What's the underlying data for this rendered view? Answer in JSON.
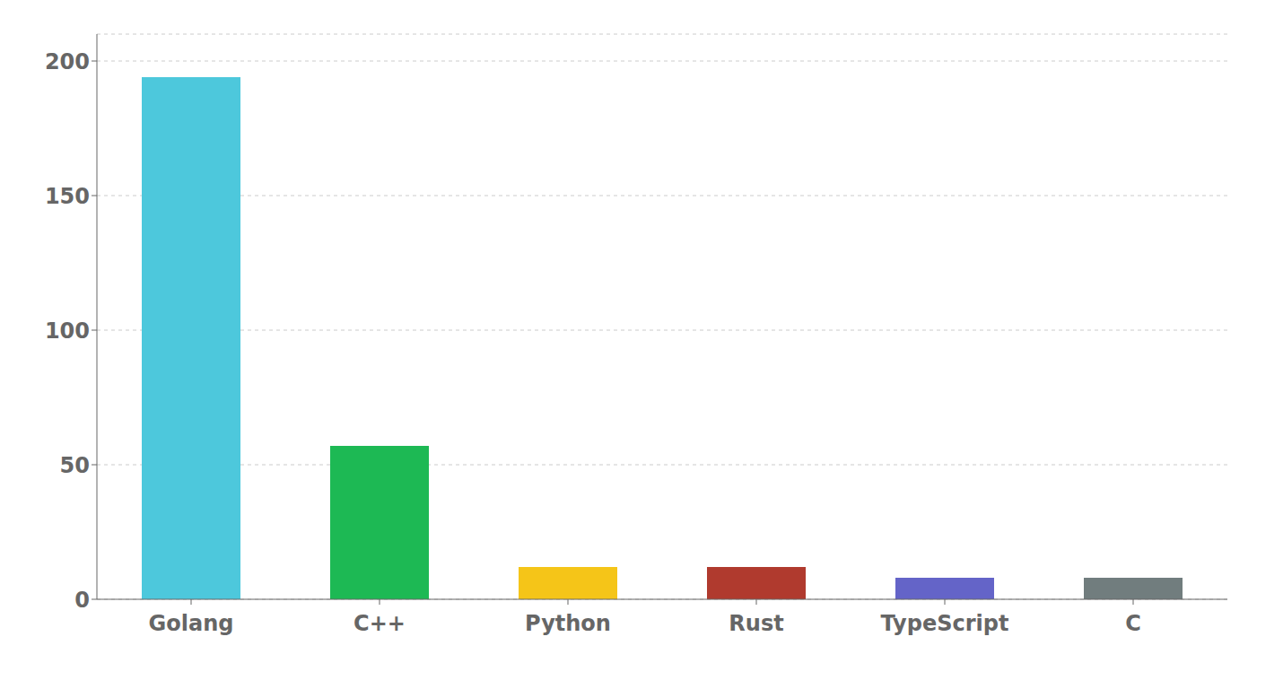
{
  "chart_data": {
    "type": "bar",
    "categories": [
      "Golang",
      "C++",
      "Python",
      "Rust",
      "TypeScript",
      "C"
    ],
    "values": [
      194,
      57,
      12,
      12,
      8,
      8
    ],
    "colors": [
      "#4DC8DC",
      "#1DB954",
      "#F5C518",
      "#B03A2E",
      "#6464C8",
      "#717D7E"
    ],
    "ylim": [
      0,
      210
    ],
    "yticks": [
      0,
      50,
      100,
      150,
      200
    ],
    "grid": true
  }
}
